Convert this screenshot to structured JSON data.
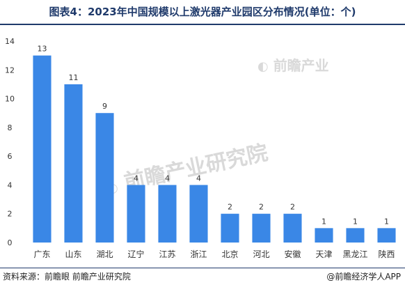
{
  "title": "图表4：2023年中国规模以上激光器产业园区分布情况(单位：个)",
  "footer": {
    "source": "资料来源：前瞻眼 前瞻产业研究院",
    "brand": "@前瞻经济学人APP"
  },
  "watermarks": {
    "small": "前瞻产业",
    "big": "前瞻产业研究院"
  },
  "chart_data": {
    "type": "bar",
    "categories": [
      "广东",
      "山东",
      "湖北",
      "辽宁",
      "江苏",
      "浙江",
      "北京",
      "河北",
      "安徽",
      "天津",
      "黑龙江",
      "陕西"
    ],
    "values": [
      13,
      11,
      9,
      4,
      4,
      4,
      2,
      2,
      2,
      1,
      1,
      1
    ],
    "ylim": [
      0,
      14
    ],
    "yticks": [
      0,
      2,
      4,
      6,
      8,
      10,
      12,
      14
    ],
    "grid": false,
    "bar_color": "#3a87e6"
  }
}
